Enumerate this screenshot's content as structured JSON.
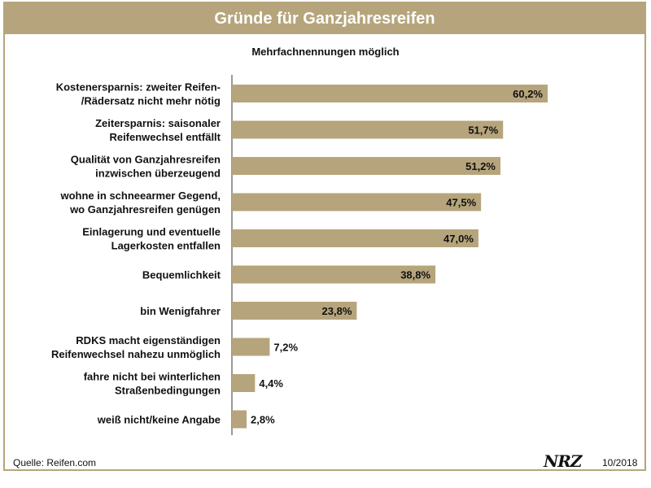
{
  "chart_data": {
    "type": "bar",
    "orientation": "horizontal",
    "title": "Gründe für Ganzjahresreifen",
    "subtitle": "Mehrfachnennungen möglich",
    "categories": [
      [
        "Kostenersparnis: zweiter Reifen-",
        "/Rädersatz nicht mehr nötig"
      ],
      [
        "Zeitersparnis: saisonaler",
        "Reifenwechsel entfällt"
      ],
      [
        "Qualität von Ganzjahresreifen",
        "inzwischen überzeugend"
      ],
      [
        "wohne in schneearmer Gegend,",
        "wo Ganzjahresreifen genügen"
      ],
      [
        "Einlagerung und eventuelle",
        "Lagerkosten  entfallen"
      ],
      [
        "Bequemlichkeit"
      ],
      [
        "bin Wenigfahrer"
      ],
      [
        "RDKS macht eigenständigen",
        "Reifenwechsel nahezu unmöglich"
      ],
      [
        "fahre nicht bei winterlichen",
        "Straßenbedingungen"
      ],
      [
        "weiß nicht/keine Angabe"
      ]
    ],
    "values": [
      60.2,
      51.7,
      51.2,
      47.5,
      47.0,
      38.8,
      23.8,
      7.2,
      4.4,
      2.8
    ],
    "value_labels": [
      "60,2%",
      "51,7%",
      "51,2%",
      "47,5%",
      "47,0%",
      "38,8%",
      "23,8%",
      "7,2%",
      "4,4%",
      "2,8%"
    ],
    "xlim": [
      0,
      100
    ],
    "bar_color": "#b6a57c"
  },
  "footer": {
    "source": "Quelle: Reifen.com",
    "logo": "NRZ",
    "date": "10/2018"
  }
}
